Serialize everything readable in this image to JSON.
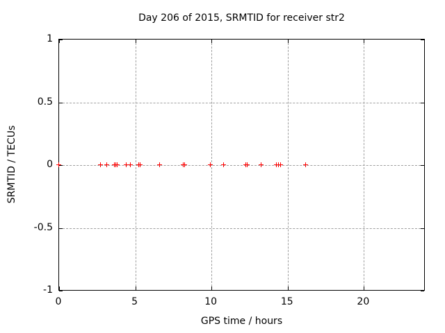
{
  "chart_data": {
    "type": "scatter",
    "title": "Day 206 of 2015, SRMTID for receiver str2",
    "xlabel": "GPS time / hours",
    "ylabel": "SRMTID / TECUs",
    "xlim": [
      0,
      24
    ],
    "ylim": [
      -1,
      1
    ],
    "xticks": [
      {
        "value": 0,
        "label": "0"
      },
      {
        "value": 5,
        "label": "5"
      },
      {
        "value": 10,
        "label": "10"
      },
      {
        "value": 15,
        "label": "15"
      },
      {
        "value": 20,
        "label": "20"
      }
    ],
    "yticks": [
      {
        "value": 1,
        "label": "1"
      },
      {
        "value": 0.5,
        "label": "0.5"
      },
      {
        "value": 0,
        "label": "0"
      },
      {
        "value": -0.5,
        "label": "-0.5"
      },
      {
        "value": -1,
        "label": "-1"
      }
    ],
    "grid": true,
    "legend_position": "none",
    "marker": "plus",
    "marker_color": "#ff0000",
    "grid_color": "#9e9e9e",
    "axis_color": "#000000",
    "background_color": "#ffffff",
    "series": [
      {
        "name": "SRMTID",
        "x": [
          0.03,
          2.75,
          3.16,
          3.68,
          3.76,
          3.84,
          4.44,
          4.71,
          5.28,
          5.38,
          6.63,
          8.17,
          8.27,
          9.96,
          10.84,
          12.28,
          12.38,
          13.32,
          14.32,
          14.42,
          14.6,
          16.21
        ],
        "y": [
          0,
          0,
          0,
          0,
          0,
          0,
          0,
          0,
          0,
          0,
          0,
          0,
          0,
          0,
          0,
          0,
          0,
          0,
          0,
          0,
          0,
          0
        ]
      }
    ]
  }
}
